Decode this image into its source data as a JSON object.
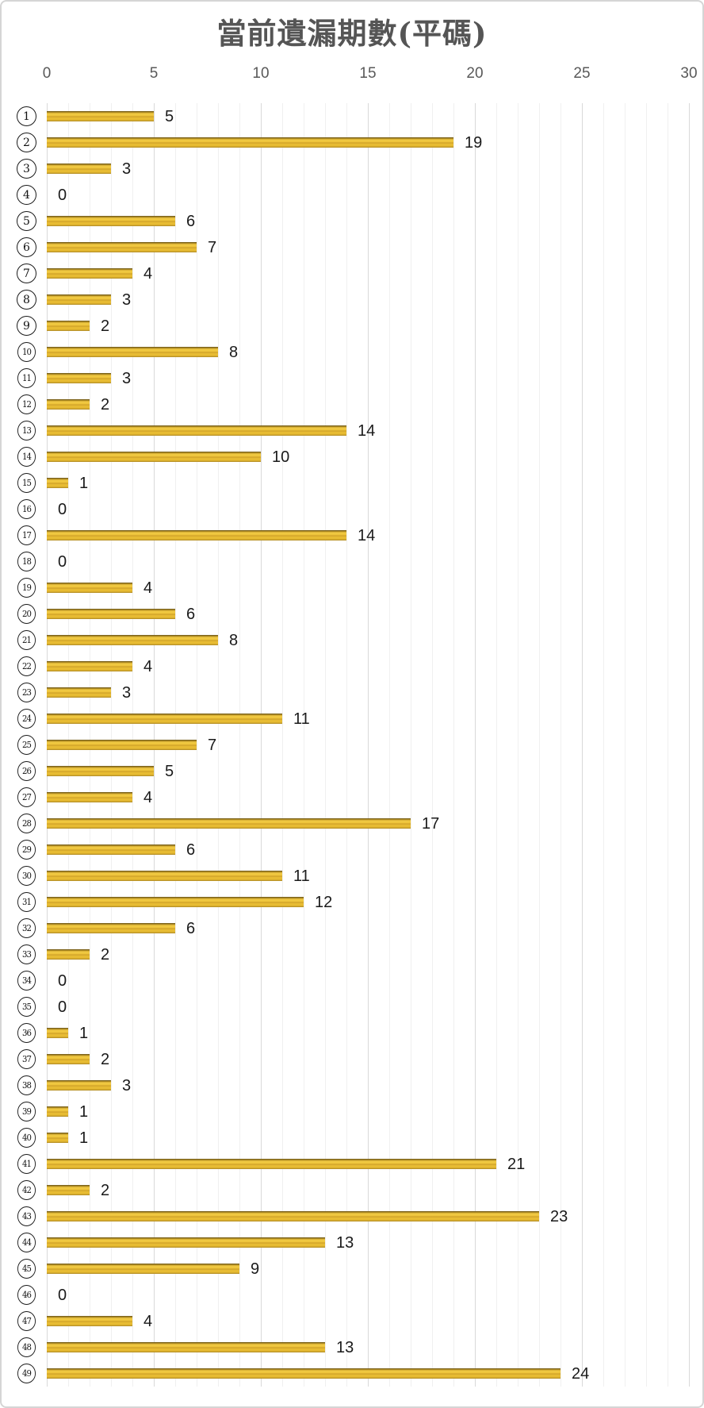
{
  "title": "當前遺漏期數(平碼)",
  "colors": {
    "bar_gold": "#EDC33A",
    "bar_gold_highlight": "#F2CC45",
    "bar_gold_shadow": "#7D641C",
    "grid_minor": "#F0F0F0",
    "grid_major": "#D9D9D9",
    "tick_text": "#595959",
    "value_text": "#1A1A1A",
    "title_text": "#555555",
    "canvas_border": "#D5D5D5"
  },
  "chart_data": {
    "type": "bar",
    "orientation": "horizontal",
    "title": "當前遺漏期數(平碼)",
    "categories": [
      1,
      2,
      3,
      4,
      5,
      6,
      7,
      8,
      9,
      10,
      11,
      12,
      13,
      14,
      15,
      16,
      17,
      18,
      19,
      20,
      21,
      22,
      23,
      24,
      25,
      26,
      27,
      28,
      29,
      30,
      31,
      32,
      33,
      34,
      35,
      36,
      37,
      38,
      39,
      40,
      41,
      42,
      43,
      44,
      45,
      46,
      47,
      48,
      49
    ],
    "category_label_style": "circled-number",
    "values": [
      5,
      19,
      3,
      0,
      6,
      7,
      4,
      3,
      2,
      8,
      3,
      2,
      14,
      10,
      1,
      0,
      14,
      0,
      4,
      6,
      8,
      4,
      3,
      11,
      7,
      5,
      4,
      17,
      6,
      11,
      12,
      6,
      2,
      0,
      0,
      1,
      2,
      3,
      1,
      1,
      21,
      2,
      23,
      13,
      9,
      0,
      4,
      13,
      24
    ],
    "value_labels": "end-of-bar",
    "xlabel": "",
    "ylabel": "",
    "xlim": [
      0,
      30
    ],
    "x_ticks": [
      0,
      5,
      10,
      15,
      20,
      25,
      30
    ],
    "x_axis_position": "top",
    "grid": "vertical, minor every 1 unit, major every 5 units",
    "legend": "none"
  }
}
